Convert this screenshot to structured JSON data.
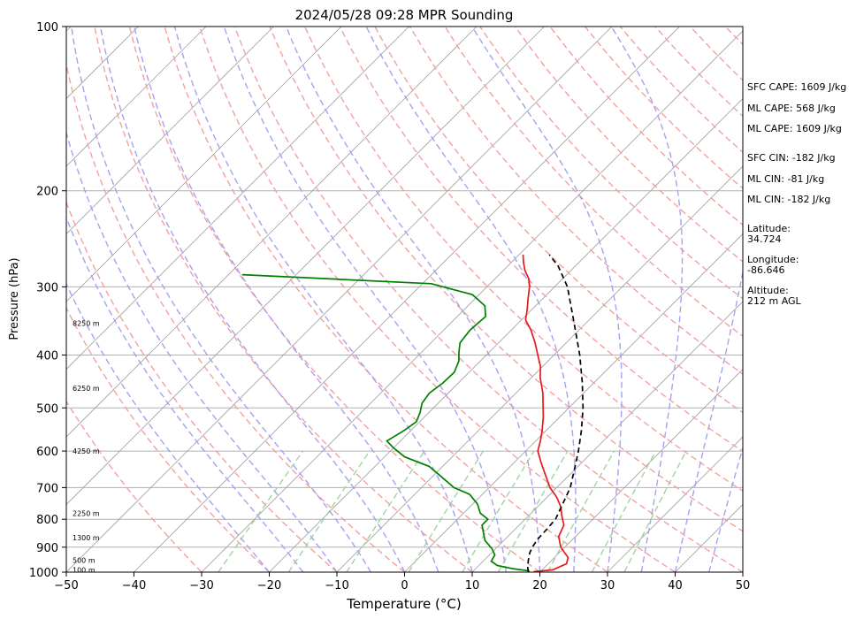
{
  "chart_data": {
    "type": "line",
    "title": "2024/05/28 09:28 MPR Sounding",
    "xlabel": "Temperature (°C)",
    "ylabel": "Pressure (hPa)",
    "xlim": [
      -50,
      50
    ],
    "ylim": [
      1000,
      100
    ],
    "y_scale": "log",
    "skew": "skew-T",
    "grid": true,
    "x_ticks": [
      "−50",
      "−40",
      "−30",
      "−20",
      "−10",
      "0",
      "10",
      "20",
      "30",
      "40",
      "50"
    ],
    "x_tick_values": [
      -50,
      -40,
      -30,
      -20,
      -10,
      0,
      10,
      20,
      30,
      40,
      50
    ],
    "y_ticks": [
      "100",
      "200",
      "300",
      "400",
      "500",
      "600",
      "700",
      "800",
      "900",
      "1000"
    ],
    "y_tick_values": [
      100,
      200,
      300,
      400,
      500,
      600,
      700,
      800,
      900,
      1000
    ],
    "height_labels": [
      {
        "p": 350,
        "text": "8250 m"
      },
      {
        "p": 460,
        "text": "6250 m"
      },
      {
        "p": 600,
        "text": "4250 m"
      },
      {
        "p": 780,
        "text": "2250 m"
      },
      {
        "p": 865,
        "text": "1300 m"
      },
      {
        "p": 950,
        "text": "500 m"
      },
      {
        "p": 990,
        "text": "100 m"
      }
    ],
    "series": [
      {
        "key": "temperature",
        "color": "#e41a1c",
        "style": "solid",
        "points": [
          [
            998,
            19.0
          ],
          [
            990,
            21.6
          ],
          [
            965,
            22.7
          ],
          [
            940,
            22.0
          ],
          [
            900,
            19.4
          ],
          [
            860,
            17.5
          ],
          [
            820,
            16.6
          ],
          [
            790,
            15.0
          ],
          [
            760,
            13.5
          ],
          [
            730,
            11.5
          ],
          [
            700,
            9.0
          ],
          [
            660,
            6.2
          ],
          [
            630,
            4.0
          ],
          [
            600,
            1.8
          ],
          [
            575,
            0.7
          ],
          [
            550,
            -0.6
          ],
          [
            520,
            -2.4
          ],
          [
            500,
            -3.8
          ],
          [
            470,
            -6.0
          ],
          [
            440,
            -8.7
          ],
          [
            420,
            -10.3
          ],
          [
            400,
            -12.4
          ],
          [
            380,
            -14.6
          ],
          [
            360,
            -17.1
          ],
          [
            345,
            -19.4
          ],
          [
            330,
            -20.7
          ],
          [
            315,
            -22.2
          ],
          [
            300,
            -23.7
          ],
          [
            290,
            -25.0
          ],
          [
            280,
            -26.8
          ],
          [
            270,
            -28.3
          ],
          [
            262,
            -29.4
          ]
        ]
      },
      {
        "key": "dewpoint",
        "color": "#008000",
        "style": "solid",
        "points": [
          [
            995,
            18.3
          ],
          [
            985,
            15.4
          ],
          [
            972,
            12.7
          ],
          [
            955,
            11.2
          ],
          [
            930,
            10.8
          ],
          [
            905,
            9.4
          ],
          [
            875,
            7.2
          ],
          [
            850,
            6.0
          ],
          [
            820,
            4.5
          ],
          [
            800,
            4.5
          ],
          [
            780,
            2.5
          ],
          [
            750,
            0.7
          ],
          [
            720,
            -1.9
          ],
          [
            700,
            -5.2
          ],
          [
            670,
            -8.5
          ],
          [
            640,
            -12.0
          ],
          [
            615,
            -17.0
          ],
          [
            592,
            -20.0
          ],
          [
            575,
            -22.0
          ],
          [
            550,
            -21.0
          ],
          [
            530,
            -20.5
          ],
          [
            510,
            -21.3
          ],
          [
            490,
            -22.4
          ],
          [
            470,
            -22.8
          ],
          [
            450,
            -22.3
          ],
          [
            430,
            -22.2
          ],
          [
            410,
            -23.2
          ],
          [
            395,
            -24.5
          ],
          [
            380,
            -25.7
          ],
          [
            360,
            -26.1
          ],
          [
            340,
            -25.8
          ],
          [
            325,
            -27.5
          ],
          [
            310,
            -31.0
          ],
          [
            296,
            -38.7
          ],
          [
            285,
            -68.0
          ]
        ]
      },
      {
        "key": "parcel",
        "color": "#000000",
        "style": "dashed",
        "points": [
          [
            1000,
            18.3
          ],
          [
            980,
            17.5
          ],
          [
            950,
            16.5
          ],
          [
            920,
            15.6
          ],
          [
            900,
            15.2
          ],
          [
            870,
            14.8
          ],
          [
            840,
            14.7
          ],
          [
            820,
            14.6
          ],
          [
            800,
            14.5
          ],
          [
            750,
            13.3
          ],
          [
            700,
            12.0
          ],
          [
            650,
            10.0
          ],
          [
            600,
            7.8
          ],
          [
            550,
            5.2
          ],
          [
            500,
            2.1
          ],
          [
            450,
            -1.7
          ],
          [
            400,
            -6.2
          ],
          [
            350,
            -11.7
          ],
          [
            300,
            -18.1
          ],
          [
            275,
            -22.5
          ],
          [
            262,
            -25.5
          ]
        ]
      }
    ]
  },
  "sidebar": {
    "sfc_cape": "SFC CAPE: 1609 J/kg",
    "ml_cape_1": "ML CAPE: 568 J/kg",
    "ml_cape_2": "ML CAPE: 1609 J/kg",
    "sfc_cin": "SFC CIN: -182 J/kg",
    "ml_cin_1": "ML CIN: -81 J/kg",
    "ml_cin_2": "ML CIN: -182 J/kg",
    "latitude_label": "Latitude:",
    "latitude_value": "34.724",
    "longitude_label": "Longitude:",
    "longitude_value": "-86.646",
    "altitude_label": "Altitude:",
    "altitude_value": "212 m AGL"
  },
  "colors": {
    "temperature": "#e41a1c",
    "dewpoint": "#008000",
    "parcel": "#000000",
    "isotherm": "#a0a0a0",
    "isobar": "#b0b0b0",
    "dry_adiabat": "#f4a0a0",
    "moist_adiabat": "#a8a0f0",
    "mixing_ratio": "#9fd49f"
  }
}
